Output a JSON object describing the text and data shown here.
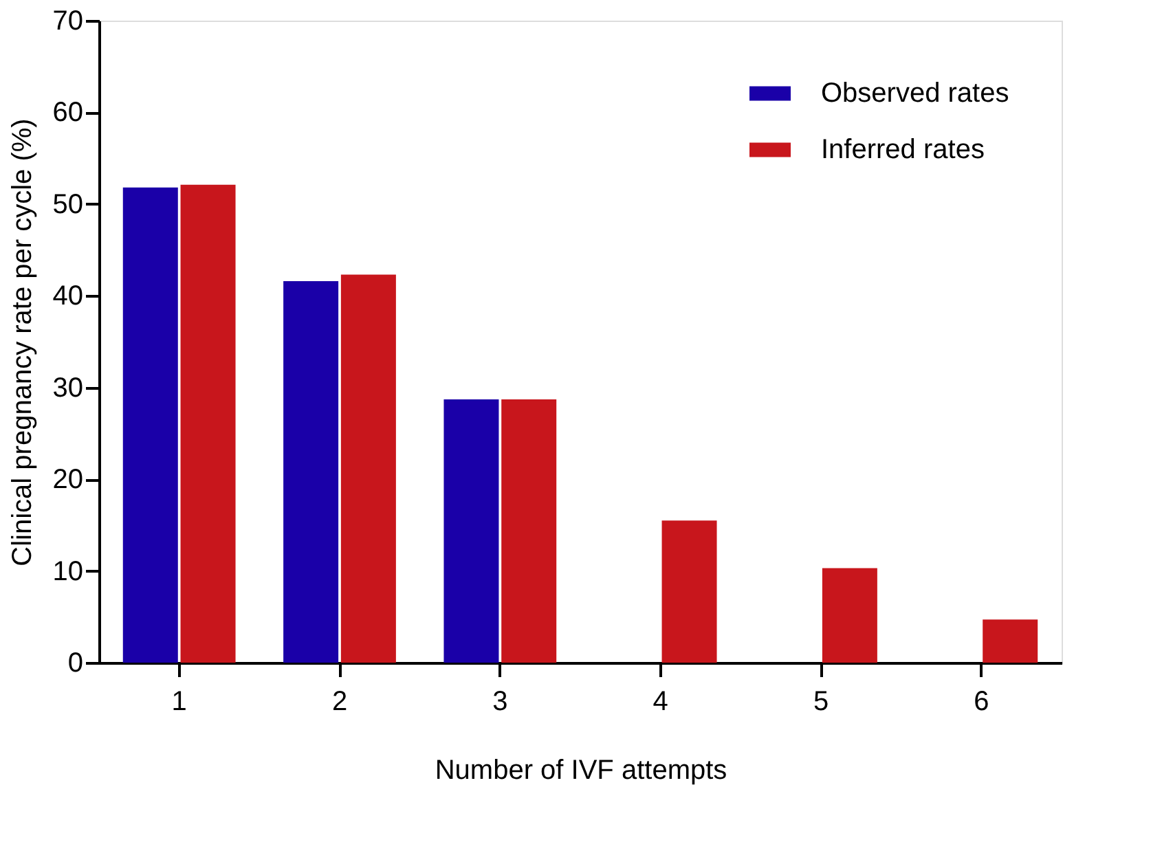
{
  "chart_data": {
    "type": "bar",
    "xlabel": "Number of IVF attempts",
    "ylabel": "Clinical pregnancy rate per cycle (%)",
    "categories": [
      "1",
      "2",
      "3",
      "4",
      "5",
      "6"
    ],
    "series": [
      {
        "name": "Observed rates",
        "color": "#1a00a8",
        "values": [
          51.8,
          41.6,
          28.7,
          null,
          null,
          null
        ]
      },
      {
        "name": "Inferred rates",
        "color": "#c8161c",
        "values": [
          52.1,
          42.3,
          28.7,
          15.5,
          10.3,
          4.7
        ]
      }
    ],
    "ylim": [
      0,
      70
    ],
    "yticks": [
      0,
      10,
      20,
      30,
      40,
      50,
      60,
      70
    ],
    "grid": false,
    "legend": "top right"
  }
}
